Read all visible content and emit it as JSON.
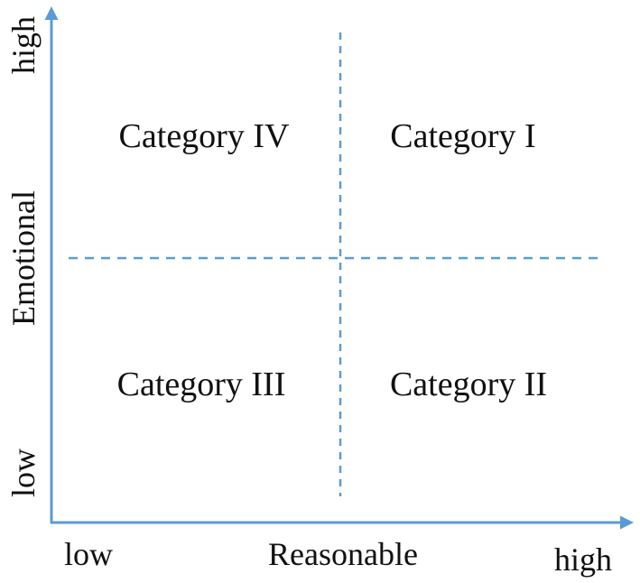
{
  "colors": {
    "axis": "#5b9bd5",
    "divider": "#5b9bd5",
    "text": "#111111",
    "background": "#ffffff"
  },
  "axes": {
    "x": {
      "label": "Reasonable",
      "low": "low",
      "high": "high"
    },
    "y": {
      "label": "Emotional",
      "low": "low",
      "high": "high"
    }
  },
  "quadrants": {
    "top_left": "Category IV",
    "top_right": "Category I",
    "bottom_left": "Category III",
    "bottom_right": "Category II"
  }
}
